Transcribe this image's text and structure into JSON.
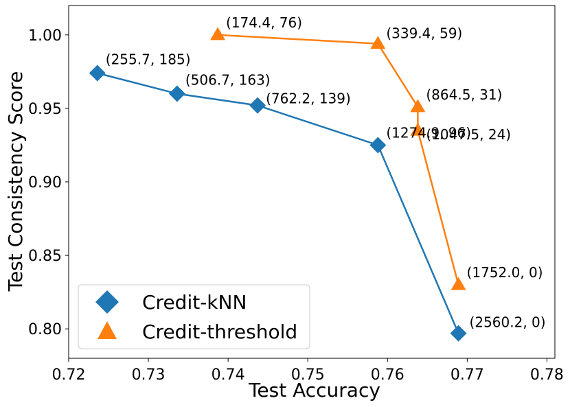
{
  "chart_data": {
    "type": "line",
    "title": "",
    "xlabel": "Test Accuracy",
    "ylabel": "Test Consistency Score",
    "xlim": [
      0.72,
      0.781
    ],
    "ylim": [
      0.78,
      1.02
    ],
    "xticks": [
      0.72,
      0.73,
      0.74,
      0.75,
      0.76,
      0.77,
      0.78
    ],
    "xtick_labels": [
      "0.72",
      "0.73",
      "0.74",
      "0.75",
      "0.76",
      "0.77",
      "0.78"
    ],
    "yticks": [
      0.8,
      0.85,
      0.9,
      0.95,
      1.0
    ],
    "ytick_labels": [
      "0.80",
      "0.85",
      "0.90",
      "0.95",
      "1.00"
    ],
    "grid": false,
    "legend_position": "lower-left",
    "series": [
      {
        "name": "Credit-kNN",
        "color": "#1f77b4",
        "marker": "diamond",
        "x": [
          0.7236,
          0.7336,
          0.7437,
          0.7588,
          0.7689
        ],
        "y": [
          0.974,
          0.96,
          0.952,
          0.925,
          0.797
        ],
        "labels": [
          "(255.7, 185)",
          "(506.7, 163)",
          "(762.2, 139)",
          "(1274.9, 96)",
          "(2560.2, 0)"
        ]
      },
      {
        "name": "Credit-threshold",
        "color": "#ff7f0e",
        "marker": "triangle",
        "x": [
          0.7387,
          0.7588,
          0.7638,
          0.7638,
          0.7689
        ],
        "y": [
          1.0,
          0.994,
          0.951,
          0.935,
          0.83
        ],
        "labels": [
          "(174.4, 76)",
          "(339.4, 59)",
          "(864.5, 31)",
          "(1047.5, 24)",
          "(1752.0, 0)"
        ]
      }
    ]
  }
}
